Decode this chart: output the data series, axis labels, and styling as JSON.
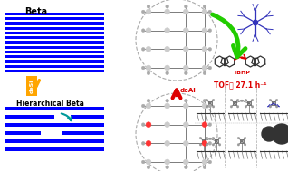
{
  "bg_color": "#ffffff",
  "beta_label": "Beta",
  "hier_label": "Hierarchical Beta",
  "desi_label": "deSi",
  "deal_label": "deAl",
  "tbhp_label": "TBHP",
  "tof_label": "TOF： 27.1 h⁻¹",
  "blue_color": "#0000ff",
  "orange_color": "#FFA500",
  "red_color": "#dd0000",
  "green_color": "#22cc00",
  "teal_color": "#009999",
  "gray_color": "#888888",
  "dark_gray": "#333333",
  "blue_mol": "#3333bb",
  "node_gray": "#cccccc",
  "node_red": "#ff3333",
  "link_gray": "#555555",
  "dashed_gray": "#aaaaaa"
}
